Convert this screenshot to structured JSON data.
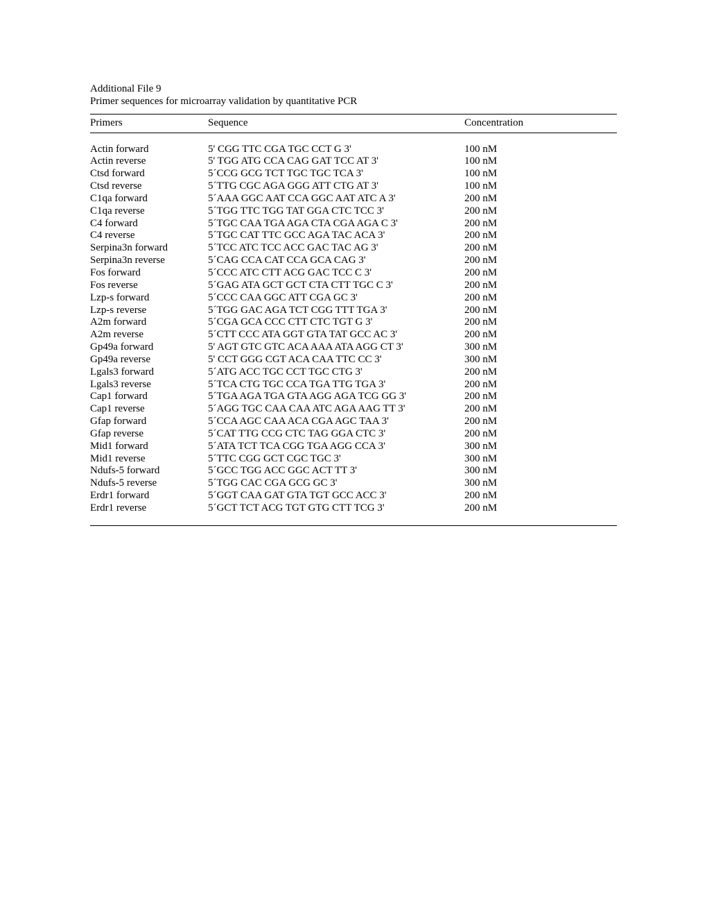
{
  "title": "Additional File 9",
  "subtitle": "Primer sequences for microarray validation by quantitative PCR",
  "headers": {
    "primer": "Primers",
    "sequence": "Sequence",
    "concentration": "Concentration"
  },
  "rows": [
    {
      "primer": "Actin forward",
      "sequence": "5' CGG TTC CGA TGC CCT G 3'",
      "concentration": "100 nM"
    },
    {
      "primer": "Actin reverse",
      "sequence": "5' TGG ATG CCA CAG GAT TCC AT 3'",
      "concentration": "100 nM"
    },
    {
      "primer": "Ctsd forward",
      "sequence": "5´CCG GCG TCT TGC TGC TCA 3'",
      "concentration": "100 nM"
    },
    {
      "primer": "Ctsd reverse",
      "sequence": "5´TTG CGC AGA GGG ATT CTG AT 3'",
      "concentration": "100 nM"
    },
    {
      "primer": "C1qa forward",
      "sequence": "5´AAA GGC AAT CCA GGC AAT ATC A 3'",
      "concentration": "200 nM"
    },
    {
      "primer": "C1qa reverse",
      "sequence": "5´TGG TTC TGG TAT GGA CTC TCC 3'",
      "concentration": "200 nM"
    },
    {
      "primer": "C4 forward",
      "sequence": "5´TGC CAA TGA AGA CTA CGA AGA C 3'",
      "concentration": "200 nM"
    },
    {
      "primer": "C4 reverse",
      "sequence": "5´TGC CAT TTC GCC AGA TAC ACA 3'",
      "concentration": "200 nM"
    },
    {
      "primer": "Serpina3n forward",
      "sequence": "5´TCC ATC TCC ACC GAC TAC AG 3'",
      "concentration": "200 nM"
    },
    {
      "primer": "Serpina3n reverse",
      "sequence": "5´CAG CCA CAT CCA GCA CAG 3'",
      "concentration": "200 nM"
    },
    {
      "primer": "Fos forward",
      "sequence": "5´CCC ATC CTT ACG GAC TCC C 3'",
      "concentration": "200 nM"
    },
    {
      "primer": "Fos reverse",
      "sequence": "5´GAG ATA GCT GCT CTA CTT TGC C 3'",
      "concentration": "200 nM"
    },
    {
      "primer": "Lzp-s forward",
      "sequence": "5´CCC CAA GGC ATT CGA GC 3'",
      "concentration": "200 nM"
    },
    {
      "primer": "Lzp-s reverse",
      "sequence": "5´TGG GAC AGA TCT CGG TTT TGA 3'",
      "concentration": "200 nM"
    },
    {
      "primer": "A2m forward",
      "sequence": "5´CGA GCA CCC CTT CTC TGT G 3'",
      "concentration": "200 nM"
    },
    {
      "primer": "A2m reverse",
      "sequence": "5´CTT CCC ATA GGT GTA TAT GCC AC 3'",
      "concentration": "200 nM"
    },
    {
      "primer": "Gp49a forward",
      "sequence": "5' AGT GTC GTC ACA AAA ATA AGG CT 3'",
      "concentration": "300 nM"
    },
    {
      "primer": "Gp49a reverse",
      "sequence": "5' CCT GGG CGT ACA CAA TTC CC 3'",
      "concentration": "300 nM"
    },
    {
      "primer": "Lgals3 forward",
      "sequence": "5´ATG ACC TGC CCT TGC CTG 3'",
      "concentration": "200 nM"
    },
    {
      "primer": "Lgals3 reverse",
      "sequence": "5´TCA CTG TGC CCA TGA TTG TGA 3'",
      "concentration": "200 nM"
    },
    {
      "primer": "Cap1 forward",
      "sequence": "5´TGA AGA TGA GTA AGG AGA TCG GG 3'",
      "concentration": "200 nM"
    },
    {
      "primer": "Cap1 reverse",
      "sequence": "5´AGG TGC CAA CAA ATC AGA AAG TT 3'",
      "concentration": "200 nM"
    },
    {
      "primer": "Gfap forward",
      "sequence": "5´CCA AGC CAA ACA CGA AGC TAA 3'",
      "concentration": "200 nM"
    },
    {
      "primer": "Gfap reverse",
      "sequence": "5´CAT TTG CCG CTC TAG GGA CTC 3'",
      "concentration": "200 nM"
    },
    {
      "primer": "Mid1 forward",
      "sequence": "5´ATA TCT TCA CGG TGA AGG CCA 3'",
      "concentration": "300 nM"
    },
    {
      "primer": "Mid1 reverse",
      "sequence": "5´TTC CGG GCT CGC TGC 3'",
      "concentration": "300 nM"
    },
    {
      "primer": "Ndufs-5 forward",
      "sequence": "5´GCC TGG ACC GGC ACT TT 3'",
      "concentration": "300 nM"
    },
    {
      "primer": "Ndufs-5 reverse",
      "sequence": "5´TGG CAC CGA GCG GC 3'",
      "concentration": "300 nM"
    },
    {
      "primer": "Erdr1 forward",
      "sequence": "5´GGT CAA GAT GTA TGT GCC ACC 3'",
      "concentration": "200 nM"
    },
    {
      "primer": "Erdr1 reverse",
      "sequence": "5´GCT TCT ACG TGT GTG CTT TCG 3'",
      "concentration": "200 nM"
    }
  ]
}
